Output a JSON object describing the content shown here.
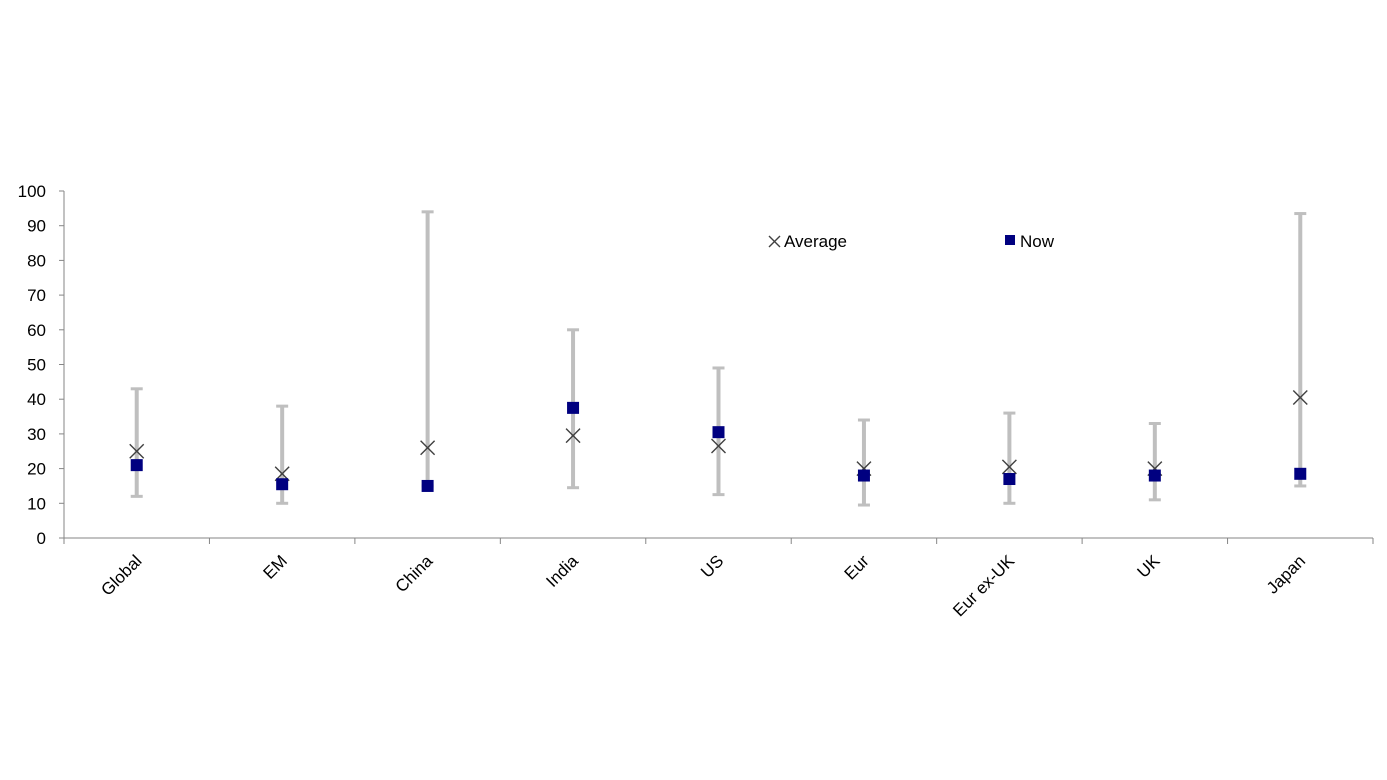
{
  "chart_data": {
    "type": "scatter",
    "title": "",
    "xlabel": "",
    "ylabel": "",
    "ylim": [
      0,
      100
    ],
    "yticks": [
      "0",
      "10",
      "20",
      "30",
      "40",
      "50",
      "60",
      "70",
      "80",
      "90",
      "100"
    ],
    "categories": [
      "Global",
      "EM",
      "China",
      "India",
      "US",
      "Eur",
      "Eur ex-UK",
      "UK",
      "Japan"
    ],
    "range": {
      "low": [
        12,
        10,
        15,
        14.5,
        12.5,
        9.5,
        10,
        11,
        15
      ],
      "high": [
        43,
        38,
        94,
        60,
        49,
        34,
        36,
        33,
        93.5
      ]
    },
    "series": [
      {
        "name": "Average",
        "marker": "x",
        "color": "#404040",
        "values": [
          25,
          18.5,
          26,
          29.5,
          26.5,
          20,
          20.5,
          20,
          40.5
        ]
      },
      {
        "name": "Now",
        "marker": "square",
        "color": "#000080",
        "values": [
          21,
          15.5,
          15,
          37.5,
          30.5,
          18,
          17,
          18,
          18.5
        ]
      }
    ],
    "range_color": "#bfbfbf",
    "legend_position": "top-right",
    "grid": false
  }
}
